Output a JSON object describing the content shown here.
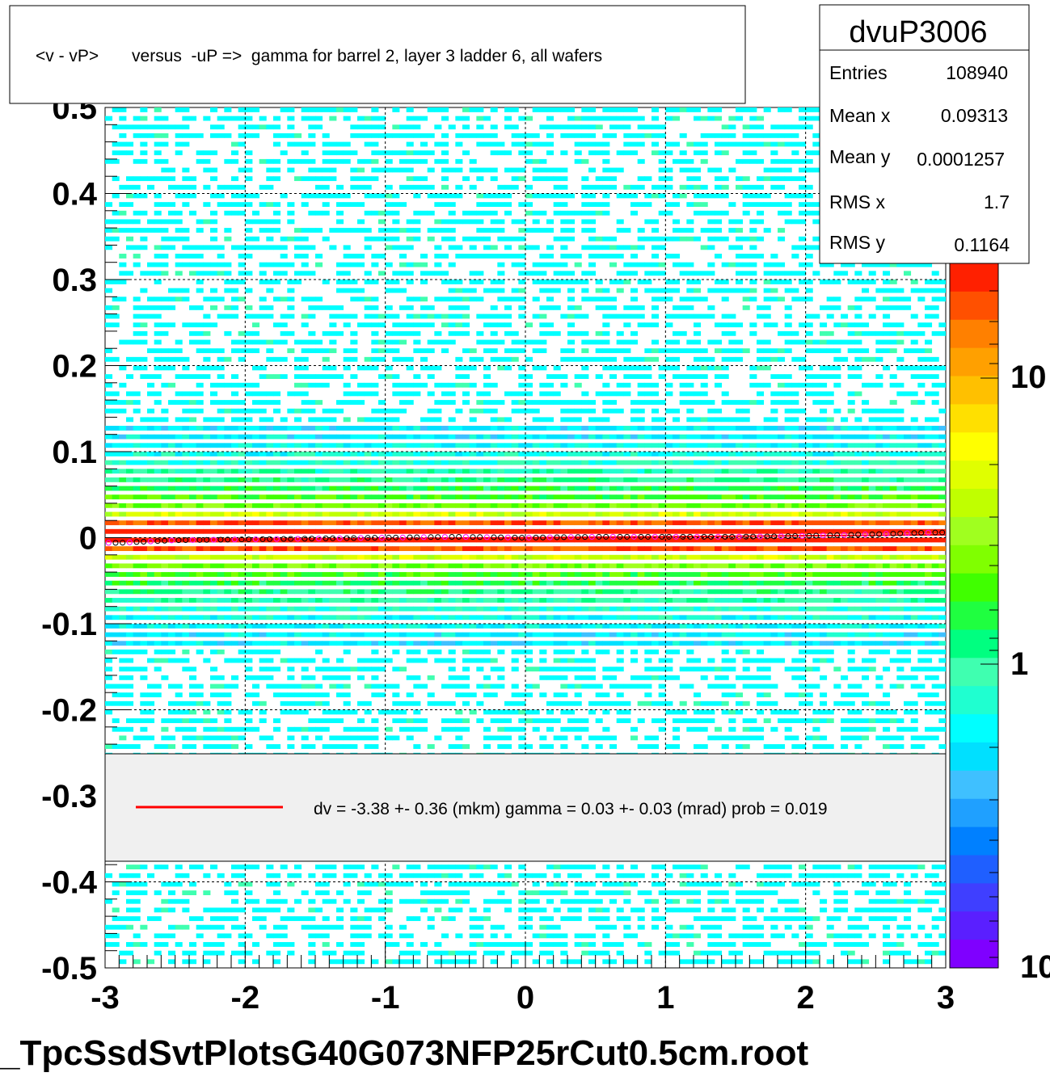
{
  "title": "<v - vP>       versus  -uP =>  gamma for barrel 2, layer 3 ladder 6, all wafers",
  "file_label": "_TpcSsdSvtPlotsG40G073NFP25rCut0.5cm.root",
  "stats": {
    "name": "dvuP3006",
    "rows": [
      {
        "label": "Entries",
        "value": "108940"
      },
      {
        "label": "Mean x",
        "value": "0.09313"
      },
      {
        "label": "Mean y",
        "value": "0.0001257"
      },
      {
        "label": "RMS x",
        "value": "1.7"
      },
      {
        "label": "RMS y",
        "value": "0.1164"
      }
    ]
  },
  "legend": {
    "line_color": "#ff0000",
    "text": "dv =   -3.38 +-  0.36 (mkm) gamma =    0.03 +-  0.03 (mrad) prob = 0.019"
  },
  "colorbar": {
    "scale": "log",
    "tick_labels": [
      "10",
      "1",
      "10"
    ]
  },
  "chart_data": {
    "type": "heatmap",
    "title": "<v - vP>       versus  -uP =>  gamma for barrel 2, layer 3 ladder 6, all wafers",
    "xlabel": "",
    "ylabel": "",
    "xlim": [
      -3,
      3
    ],
    "ylim": [
      -0.5,
      0.5
    ],
    "x_ticks": [
      "-3",
      "-2",
      "-1",
      "0",
      "1",
      "2",
      "3"
    ],
    "y_ticks": [
      "-0.5",
      "-0.4",
      "-0.3",
      "-0.2",
      "-0.1",
      "0",
      "0.1",
      "0.2",
      "0.3",
      "0.4",
      "0.5"
    ],
    "grid": true,
    "density_profile": {
      "description_of_shape": "narrow band centred at y = 0 across full x range",
      "core_sigma": 0.012,
      "tail_sigma": 0.05,
      "background_level": 0.35
    },
    "profile_points": {
      "x": [
        -2.9,
        -2.5,
        -2.0,
        -1.5,
        -1.0,
        -0.5,
        0.0,
        0.5,
        1.0,
        1.5,
        2.0,
        2.5,
        2.9
      ],
      "y": [
        -0.006,
        -0.003,
        -0.002,
        -0.001,
        0.0,
        0.001,
        0.0,
        0.001,
        0.001,
        0.001,
        0.002,
        0.004,
        0.006
      ]
    },
    "fit_line": {
      "x": [
        -3,
        3
      ],
      "y": [
        -0.0034,
        0.0034
      ],
      "color": "#ff0000"
    }
  }
}
